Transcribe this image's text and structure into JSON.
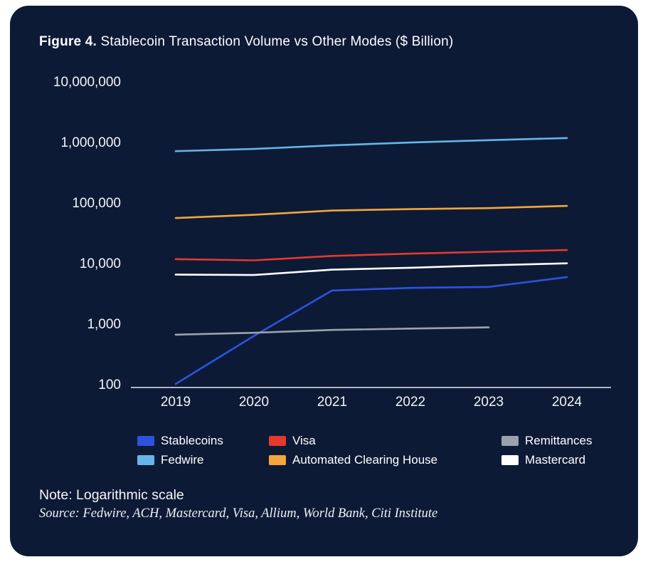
{
  "header": {
    "figure_label": "Figure 4.",
    "title_rest": " Stablecoin Transaction Volume vs Other Modes ($ Billion)"
  },
  "footer": {
    "note": "Note: Logarithmic scale",
    "source": "Source: Fedwire, ACH, Mastercard, Visa, Allium, World Bank, Citi Institute"
  },
  "colors": {
    "card_background": "#0d1a36",
    "text": "#ffffff",
    "axis": "#e3e8ee"
  },
  "chart_data": {
    "type": "line",
    "title": "Figure 4. Stablecoin Transaction Volume vs Other Modes ($ Billion)",
    "y_scale": "log",
    "ylim": [
      100,
      10000000
    ],
    "y_ticks": [
      "10,000,000",
      "1,000,000",
      "100,000",
      "10,000",
      "1,000",
      "100"
    ],
    "x": [
      "2019",
      "2020",
      "2021",
      "2022",
      "2023",
      "2024"
    ],
    "grid": false,
    "legend_position": "bottom",
    "series": [
      {
        "name": "Stablecoins",
        "color": "#2d53de",
        "values": [
          100,
          620,
          3500,
          3850,
          4000,
          5800
        ]
      },
      {
        "name": "Visa",
        "color": "#e6392d",
        "values": [
          11500,
          11000,
          13000,
          14200,
          15200,
          16300
        ]
      },
      {
        "name": "Remittances",
        "color": "#9aa2ab",
        "values": [
          650,
          700,
          780,
          820,
          860,
          null
        ]
      },
      {
        "name": "Fedwire",
        "color": "#66b5e8",
        "values": [
          700000,
          760000,
          870000,
          970000,
          1060000,
          1150000
        ]
      },
      {
        "name": "Automated Clearing House",
        "color": "#f2a63b",
        "values": [
          55000,
          62000,
          73000,
          77000,
          80000,
          87000
        ]
      },
      {
        "name": "Mastercard",
        "color": "#ffffff",
        "values": [
          6400,
          6300,
          7700,
          8300,
          9100,
          9800
        ]
      }
    ],
    "legend_rows": [
      [
        "Stablecoins",
        "Visa",
        "Remittances"
      ],
      [
        "Fedwire",
        "Automated Clearing House",
        "Mastercard"
      ]
    ]
  }
}
